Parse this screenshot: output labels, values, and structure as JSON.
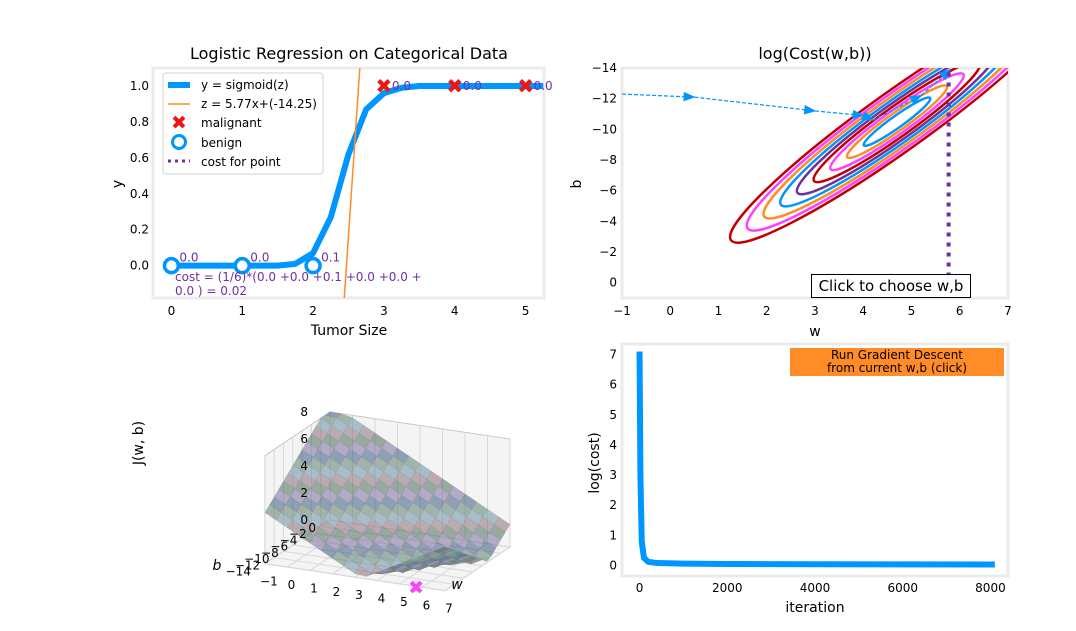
{
  "colors": {
    "blue": "#0096ff",
    "orange": "#ff8c26",
    "red": "#ee1515",
    "purple": "#7030a0",
    "axis_bg": "#ebebeb"
  },
  "top_left": {
    "title": "Logistic Regression on Categorical Data",
    "xlabel": "Tumor Size",
    "ylabel": "y",
    "legend": [
      "y = sigmoid(z)",
      "z = 5.77x+(-14.25)",
      "malignant",
      "benign",
      "cost for point"
    ],
    "cost_text_line1": "cost = (1/6)*(0.0 +0.0 +0.1 +0.0 +0.0 +",
    "cost_text_line2": "0.0 ) = 0.02"
  },
  "top_right": {
    "title": "log(Cost(w,b))",
    "xlabel": "w",
    "ylabel": "b",
    "choose_label": "Click to choose w,b"
  },
  "bottom_left": {
    "zlabel": "J(w, b)",
    "xlabel": "w",
    "ylabel": "b",
    "w_ticks": [
      "-1",
      "0",
      "1",
      "2",
      "3",
      "4",
      "5",
      "6",
      "7"
    ],
    "b_ticks": [
      "0",
      "-2",
      "-4",
      "-6",
      "-8",
      "-10",
      "-12",
      "-14"
    ],
    "z_ticks": [
      "0",
      "2",
      "4",
      "6",
      "8"
    ]
  },
  "bottom_right": {
    "xlabel": "iteration",
    "ylabel": "log(cost)",
    "button_line1": "Run Gradient Descent",
    "button_line2": "from current w,b (click)"
  },
  "chart_data": [
    {
      "type": "scatter",
      "title": "Logistic Regression on Categorical Data",
      "xlabel": "Tumor Size",
      "ylabel": "y",
      "xlim": [
        -0.26,
        5.26
      ],
      "ylim": [
        -0.18,
        1.1
      ],
      "xticks": [
        0,
        1,
        2,
        3,
        4,
        5
      ],
      "yticks": [
        0.0,
        0.2,
        0.4,
        0.6,
        0.8,
        1.0
      ],
      "grid": false,
      "legend_position": "top-left",
      "series": [
        {
          "name": "y = sigmoid(z)",
          "kind": "line",
          "x": [
            0,
            0.25,
            0.5,
            0.75,
            1,
            1.25,
            1.5,
            1.75,
            2,
            2.25,
            2.5,
            2.75,
            3,
            3.25,
            3.5,
            3.75,
            4,
            4.25,
            4.5,
            4.75,
            5,
            5.25
          ],
          "y": [
            0.0,
            0.0,
            0.0,
            0.0,
            0.0,
            0.0,
            0.0,
            0.01,
            0.07,
            0.27,
            0.62,
            0.87,
            0.96,
            0.99,
            1.0,
            1.0,
            1.0,
            1.0,
            1.0,
            1.0,
            1.0,
            1.0
          ]
        },
        {
          "name": "z = 5.77x+(-14.25)",
          "kind": "line",
          "x": [
            2.44,
            2.66
          ],
          "y": [
            -0.18,
            1.1
          ]
        },
        {
          "name": "malignant",
          "kind": "points",
          "x": [
            3,
            4,
            5
          ],
          "y": [
            1,
            1,
            1
          ],
          "labels": [
            "0.0",
            "0.0",
            "0.0"
          ]
        },
        {
          "name": "benign",
          "kind": "points",
          "x": [
            0,
            1,
            2
          ],
          "y": [
            0,
            0,
            0
          ],
          "labels": [
            "0.0",
            "0.0",
            "0.1"
          ]
        },
        {
          "name": "cost for point",
          "kind": "dotted",
          "x": [
            2,
            2
          ],
          "y": [
            0,
            0.07
          ]
        }
      ]
    },
    {
      "type": "line",
      "title": "log(Cost(w,b))",
      "xlabel": "w",
      "ylabel": "b",
      "xlim": [
        -1,
        7
      ],
      "ylim": [
        1,
        -14
      ],
      "xticks": [
        -1,
        0,
        1,
        2,
        3,
        4,
        5,
        6,
        7
      ],
      "yticks": [
        0,
        -2,
        -4,
        -6,
        -8,
        -10,
        -12,
        -14
      ],
      "grid": false,
      "contour_colors": [
        "#0096ff",
        "#ff8c26",
        "#ff40ff",
        "#c00000",
        "#7030a0"
      ],
      "contour_levels": [
        0.6,
        0.9,
        1.2,
        1.5,
        1.8,
        2.1,
        2.4,
        2.7,
        3.0
      ],
      "contour_minimum": [
        4.7,
        -10.5
      ],
      "descent_path": {
        "w": [
          -1,
          0.5,
          3.0,
          4.0,
          4.2,
          5.2,
          5.8
        ],
        "b": [
          -12.3,
          -12.1,
          -11.2,
          -10.9,
          -10.6,
          -12.2,
          -13.9
        ]
      },
      "cost_point_line": {
        "w": [
          5.77,
          5.77
        ],
        "b": [
          0.9,
          -14.25
        ]
      }
    },
    {
      "type": "area",
      "subtype": "surface3d",
      "xlabel": "w",
      "ylabel": "b",
      "zlabel": "J(w, b)",
      "xlim": [
        -1,
        7
      ],
      "ylim": [
        -14,
        0
      ],
      "zlim": [
        0,
        8
      ],
      "current_point": {
        "w": 5.77,
        "b": -14.25,
        "z": 0.02
      }
    },
    {
      "type": "line",
      "xlabel": "iteration",
      "ylabel": "log(cost)",
      "xlim": [
        -400,
        8400
      ],
      "ylim": [
        -0.35,
        7.35
      ],
      "xticks": [
        0,
        2000,
        4000,
        6000,
        8000
      ],
      "yticks": [
        0,
        1,
        2,
        3,
        4,
        5,
        6,
        7
      ],
      "grid": false,
      "series": [
        {
          "name": "",
          "x": [
            0,
            20,
            50,
            100,
            200,
            400,
            1000,
            2000,
            4000,
            8100
          ],
          "y": [
            7.1,
            3.0,
            0.8,
            0.25,
            0.12,
            0.08,
            0.06,
            0.05,
            0.04,
            0.03
          ]
        }
      ]
    }
  ]
}
